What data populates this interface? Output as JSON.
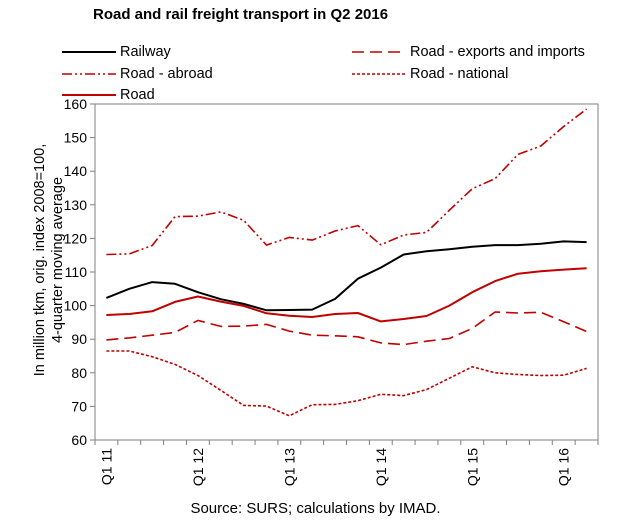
{
  "chart_data": {
    "type": "line",
    "title": "Road and rail freight transport in Q2 2016",
    "ylabel_lines": [
      "In million tkm, orig. index 2008=100,",
      "4-quarter moving average"
    ],
    "xlabel": "",
    "ylim": [
      60,
      160
    ],
    "yticks": [
      60,
      70,
      80,
      90,
      100,
      110,
      120,
      130,
      140,
      150,
      160
    ],
    "x": [
      "Q1 11",
      "Q2 11",
      "Q3 11",
      "Q4 11",
      "Q1 12",
      "Q2 12",
      "Q3 12",
      "Q4 12",
      "Q1 13",
      "Q2 13",
      "Q3 13",
      "Q4 13",
      "Q1 14",
      "Q2 14",
      "Q3 14",
      "Q4 14",
      "Q1 15",
      "Q2 15",
      "Q3 15",
      "Q4 15",
      "Q1 16",
      "Q2 16"
    ],
    "xtick_labels": [
      "Q1 11",
      "Q1 12",
      "Q1 13",
      "Q1 14",
      "Q1 15",
      "Q1 16"
    ],
    "xtick_indices": [
      0,
      4,
      8,
      12,
      16,
      20
    ],
    "grid": false,
    "legend_placement": "top",
    "series": [
      {
        "name": "Railway",
        "color": "#000000",
        "dash": "solid",
        "values": [
          102.3,
          105.0,
          107.0,
          106.5,
          104.0,
          101.9,
          100.5,
          98.6,
          98.7,
          98.8,
          102.0,
          108.0,
          111.3,
          115.2,
          116.2,
          116.8,
          117.5,
          118.0,
          118.0,
          118.4,
          119.1,
          118.9
        ]
      },
      {
        "name": "Road - abroad",
        "color": "#c00000",
        "dash": "dashdotdot",
        "values": [
          115.2,
          115.4,
          117.9,
          126.5,
          126.6,
          127.9,
          125.4,
          118.0,
          120.3,
          119.5,
          122.2,
          123.8,
          118.1,
          121.0,
          121.8,
          128.4,
          134.8,
          137.8,
          145.0,
          147.5,
          153.3,
          158.5
        ]
      },
      {
        "name": "Road",
        "color": "#c00000",
        "dash": "solid",
        "values": [
          97.2,
          97.5,
          98.3,
          101.1,
          102.7,
          101.2,
          99.9,
          97.7,
          97.0,
          96.6,
          97.5,
          97.8,
          95.3,
          96.0,
          96.9,
          100.0,
          104.0,
          107.3,
          109.5,
          110.2,
          110.7,
          111.1
        ]
      },
      {
        "name": "Road - exports and imports",
        "color": "#c00000",
        "dash": "longdash",
        "values": [
          89.8,
          90.4,
          91.2,
          92.0,
          95.6,
          93.8,
          93.9,
          94.4,
          92.4,
          91.2,
          91.0,
          90.7,
          88.9,
          88.4,
          89.4,
          90.2,
          93.2,
          98.1,
          97.8,
          98.0,
          95.2,
          92.3
        ]
      },
      {
        "name": "Road - national",
        "color": "#c00000",
        "dash": "shortdash",
        "values": [
          86.5,
          86.5,
          84.8,
          82.5,
          79.2,
          74.8,
          70.3,
          70.1,
          67.2,
          70.5,
          70.6,
          71.7,
          73.6,
          73.2,
          75.0,
          78.4,
          81.8,
          80.0,
          79.5,
          79.2,
          79.3,
          81.3
        ]
      }
    ]
  },
  "legend": {
    "railway": "Railway",
    "road_abroad": "Road - abroad",
    "road": "Road",
    "road_exports": "Road - exports and imports",
    "road_national": "Road - national"
  },
  "source": "Source: SURS; calculations by IMAD."
}
